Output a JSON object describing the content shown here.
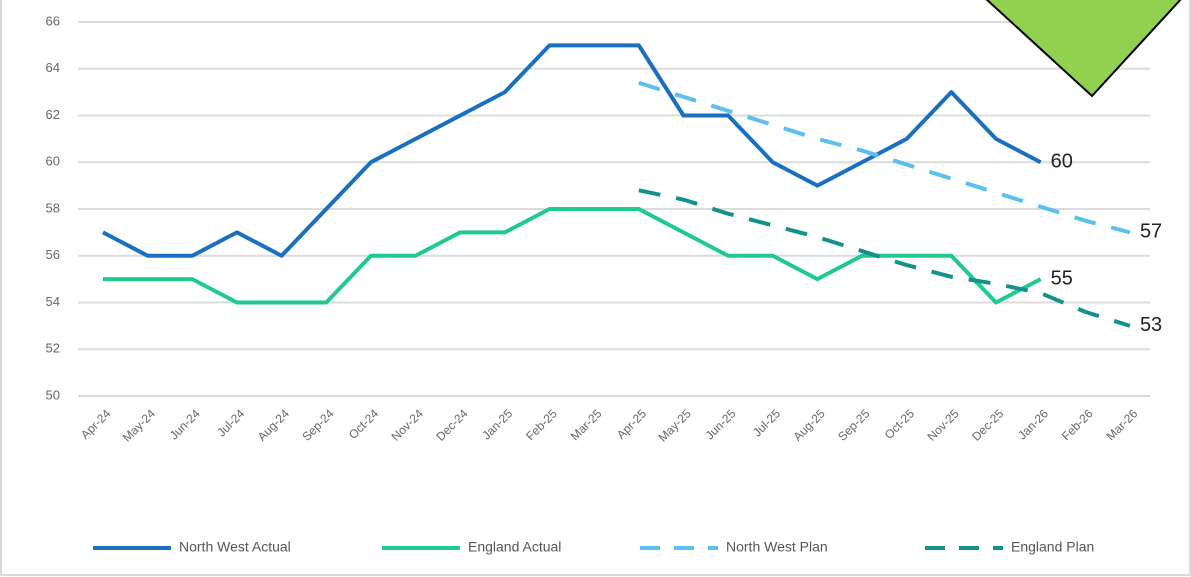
{
  "chart_data": {
    "type": "line",
    "categories": [
      "Apr-24",
      "May-24",
      "Jun-24",
      "Jul-24",
      "Aug-24",
      "Sep-24",
      "Oct-24",
      "Nov-24",
      "Dec-24",
      "Jan-25",
      "Feb-25",
      "Mar-25",
      "Apr-25",
      "May-25",
      "Jun-25",
      "Jul-25",
      "Aug-25",
      "Sep-25",
      "Oct-25",
      "Nov-25",
      "Dec-25",
      "Jan-26",
      "Feb-26",
      "Mar-26"
    ],
    "series": [
      {
        "name": "North West Actual",
        "color": "#1a6fc0",
        "line_style": "solid",
        "values": [
          57,
          56,
          56,
          57,
          56,
          58,
          60,
          61,
          62,
          63,
          65,
          65,
          65,
          62,
          62,
          60,
          59,
          60,
          61,
          63,
          61,
          60,
          null,
          null
        ]
      },
      {
        "name": "England Actual",
        "color": "#1ecb8c",
        "line_style": "solid",
        "values": [
          55,
          55,
          55,
          54,
          54,
          54,
          56,
          56,
          57,
          57,
          58,
          58,
          58,
          57,
          56,
          56,
          55,
          56,
          56,
          56,
          54,
          55,
          null,
          null
        ]
      },
      {
        "name": "North West Plan",
        "color": "#5bc0ef",
        "line_style": "dashed",
        "values": [
          null,
          null,
          null,
          null,
          null,
          null,
          null,
          null,
          null,
          null,
          null,
          null,
          63.4,
          62.8,
          62.2,
          61.6,
          61.0,
          60.5,
          59.9,
          59.3,
          58.7,
          58.1,
          57.5,
          57
        ]
      },
      {
        "name": "England Plan",
        "color": "#13918a",
        "line_style": "dashed",
        "values": [
          null,
          null,
          null,
          null,
          null,
          null,
          null,
          null,
          null,
          null,
          null,
          null,
          58.8,
          58.4,
          57.8,
          57.3,
          56.8,
          56.2,
          55.6,
          55.1,
          54.8,
          54.4,
          53.6,
          53
        ]
      }
    ],
    "ylim": [
      50,
      66
    ],
    "yticks": [
      50,
      52,
      54,
      56,
      58,
      60,
      62,
      64,
      66
    ],
    "grid": true,
    "legend": "bottom"
  }
}
